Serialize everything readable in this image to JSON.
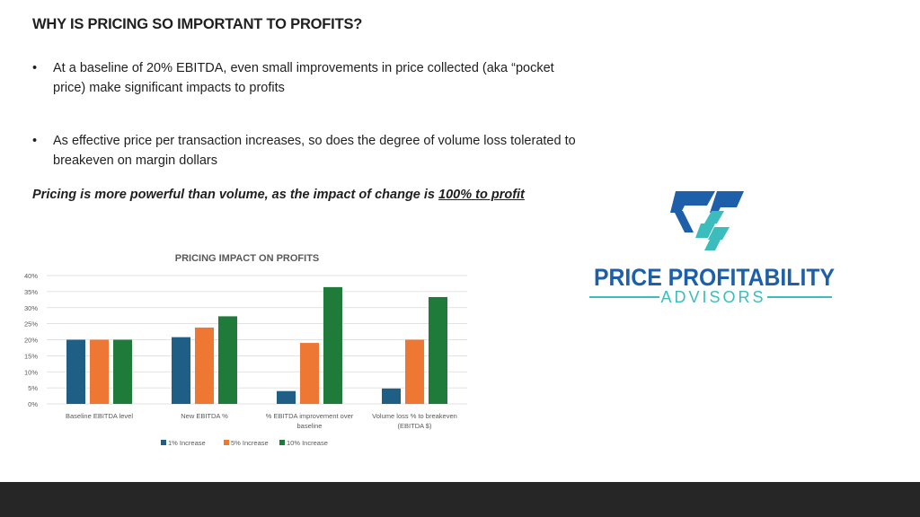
{
  "slide": {
    "title": "WHY IS PRICING SO IMPORTANT TO PROFITS?",
    "bullets": [
      "At a baseline of 20% EBITDA, even small improvements in price collected (aka “pocket price) make significant impacts to profits",
      "As effective price per transaction increases, so does the degree of volume loss tolerated to breakeven on margin dollars"
    ],
    "bullet_symbol": "•",
    "emphasis": {
      "text": "Pricing is more powerful than volume, as the impact of change is ",
      "underlined": "100% to profit"
    }
  },
  "logo": {
    "line1": "PRICE PROFITABILITY",
    "line2": "ADVISORS",
    "colors": {
      "blue": "#1d5fa8",
      "teal": "#3bbdbd"
    }
  },
  "colors": {
    "series": [
      "#1f5f86",
      "#ee7733",
      "#1e7b3a"
    ],
    "grid": "#d9d9d9",
    "axis_text": "#595959",
    "footer": "#262626"
  },
  "chart_data": {
    "type": "bar",
    "title": "PRICING IMPACT ON PROFITS",
    "categories": [
      "Baseline EBITDA level",
      "New EBITDA %",
      "% EBITDA improvement over baseline",
      "Volume loss % to breakeven (EBITDA $)"
    ],
    "category_lines": [
      [
        "Baseline EBITDA level"
      ],
      [
        "New EBITDA %"
      ],
      [
        "% EBITDA improvement over",
        "baseline"
      ],
      [
        "Volume loss % to breakeven",
        "(EBITDA $)"
      ]
    ],
    "series": [
      {
        "name": "1% Increase",
        "values": [
          20,
          20.8,
          4,
          4.8
        ]
      },
      {
        "name": "5% Increase",
        "values": [
          20,
          23.8,
          19,
          20
        ]
      },
      {
        "name": "10% Increase",
        "values": [
          20,
          27.3,
          36.4,
          33.3
        ]
      }
    ],
    "ylim": [
      0,
      40
    ],
    "yticks": [
      "0%",
      "5%",
      "10%",
      "15%",
      "20%",
      "25%",
      "30%",
      "35%",
      "40%"
    ],
    "grid": true,
    "legend": "bottom",
    "xlabel": "",
    "ylabel": ""
  }
}
